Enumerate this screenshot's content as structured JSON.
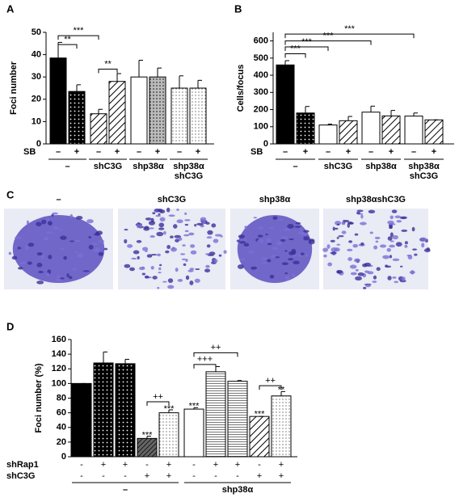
{
  "chart_data": [
    {
      "type": "bar",
      "panel": "A",
      "ylabel": "Foci number",
      "ylim": [
        0,
        50
      ],
      "yticks": [
        0,
        10,
        20,
        30,
        40,
        50
      ],
      "category_label": "SB",
      "categories": [
        "–",
        "+",
        "–",
        "+",
        "–",
        "+",
        "–",
        "+"
      ],
      "groups": [
        "–",
        "shC3G",
        "shp38α",
        [
          "shp38α",
          "shC3G"
        ]
      ],
      "values": [
        38.5,
        23.5,
        13.5,
        28,
        30,
        30,
        25,
        25
      ],
      "errors": [
        7,
        3,
        2,
        3.5,
        7.5,
        4,
        5.5,
        3.5
      ],
      "patterns": [
        "solid",
        "dark-dots",
        "hatch",
        "hatch",
        "white",
        "gray-dots",
        "light-dots",
        "light-dots"
      ],
      "annotations": [
        "**",
        "***",
        "**"
      ]
    },
    {
      "type": "bar",
      "panel": "B",
      "ylabel": "Cells/focus",
      "ylim": [
        0,
        650
      ],
      "yticks": [
        0,
        100,
        200,
        300,
        400,
        500,
        600
      ],
      "category_label": "SB",
      "categories": [
        "–",
        "+",
        "–",
        "+",
        "–",
        "+",
        "–",
        "+"
      ],
      "groups": [
        "–",
        "shC3G",
        "shp38α",
        [
          "shp38α",
          "shC3G"
        ]
      ],
      "values": [
        460,
        180,
        110,
        135,
        185,
        163,
        162,
        140
      ],
      "errors": [
        25,
        38,
        5,
        25,
        35,
        32,
        18,
        0
      ],
      "patterns": [
        "solid",
        "dark-dots",
        "white",
        "hatch",
        "white",
        "hatch",
        "white",
        "hatch"
      ],
      "annotations": [
        "***",
        "***",
        "***",
        "***"
      ]
    },
    {
      "type": "bar",
      "panel": "D",
      "ylabel": "Foci number (%)",
      "ylim": [
        0,
        160
      ],
      "yticks": [
        0,
        20,
        40,
        60,
        80,
        100,
        120,
        140,
        160
      ],
      "rows": [
        {
          "name": "shRap1",
          "values": [
            "-",
            "+",
            "+",
            "-",
            "+",
            "-",
            "+",
            "+",
            "-",
            "+"
          ]
        },
        {
          "name": "shC3G",
          "values": [
            "-",
            "-",
            "-",
            "+",
            "+",
            "-",
            "-",
            "-",
            "+",
            "+"
          ]
        }
      ],
      "groups": [
        "–",
        "shp38α"
      ],
      "values": [
        100,
        128,
        127,
        25,
        60,
        65,
        116,
        103,
        55,
        83
      ],
      "errors": [
        0,
        15,
        6,
        3,
        4,
        2,
        7,
        1,
        0,
        6
      ],
      "patterns": [
        "solid",
        "dark-dots",
        "dark-dots",
        "dark-hatch",
        "light-dots",
        "white",
        "lines",
        "lines",
        "hatch",
        "light-dots"
      ],
      "annotations": [
        "***",
        "***",
        "++",
        "***",
        "+++",
        "++",
        "***",
        "**",
        "++"
      ]
    }
  ],
  "panel_c": {
    "panel": "C",
    "labels": [
      "–",
      "shC3G",
      "shp38α",
      "shp38αshC3G"
    ]
  }
}
